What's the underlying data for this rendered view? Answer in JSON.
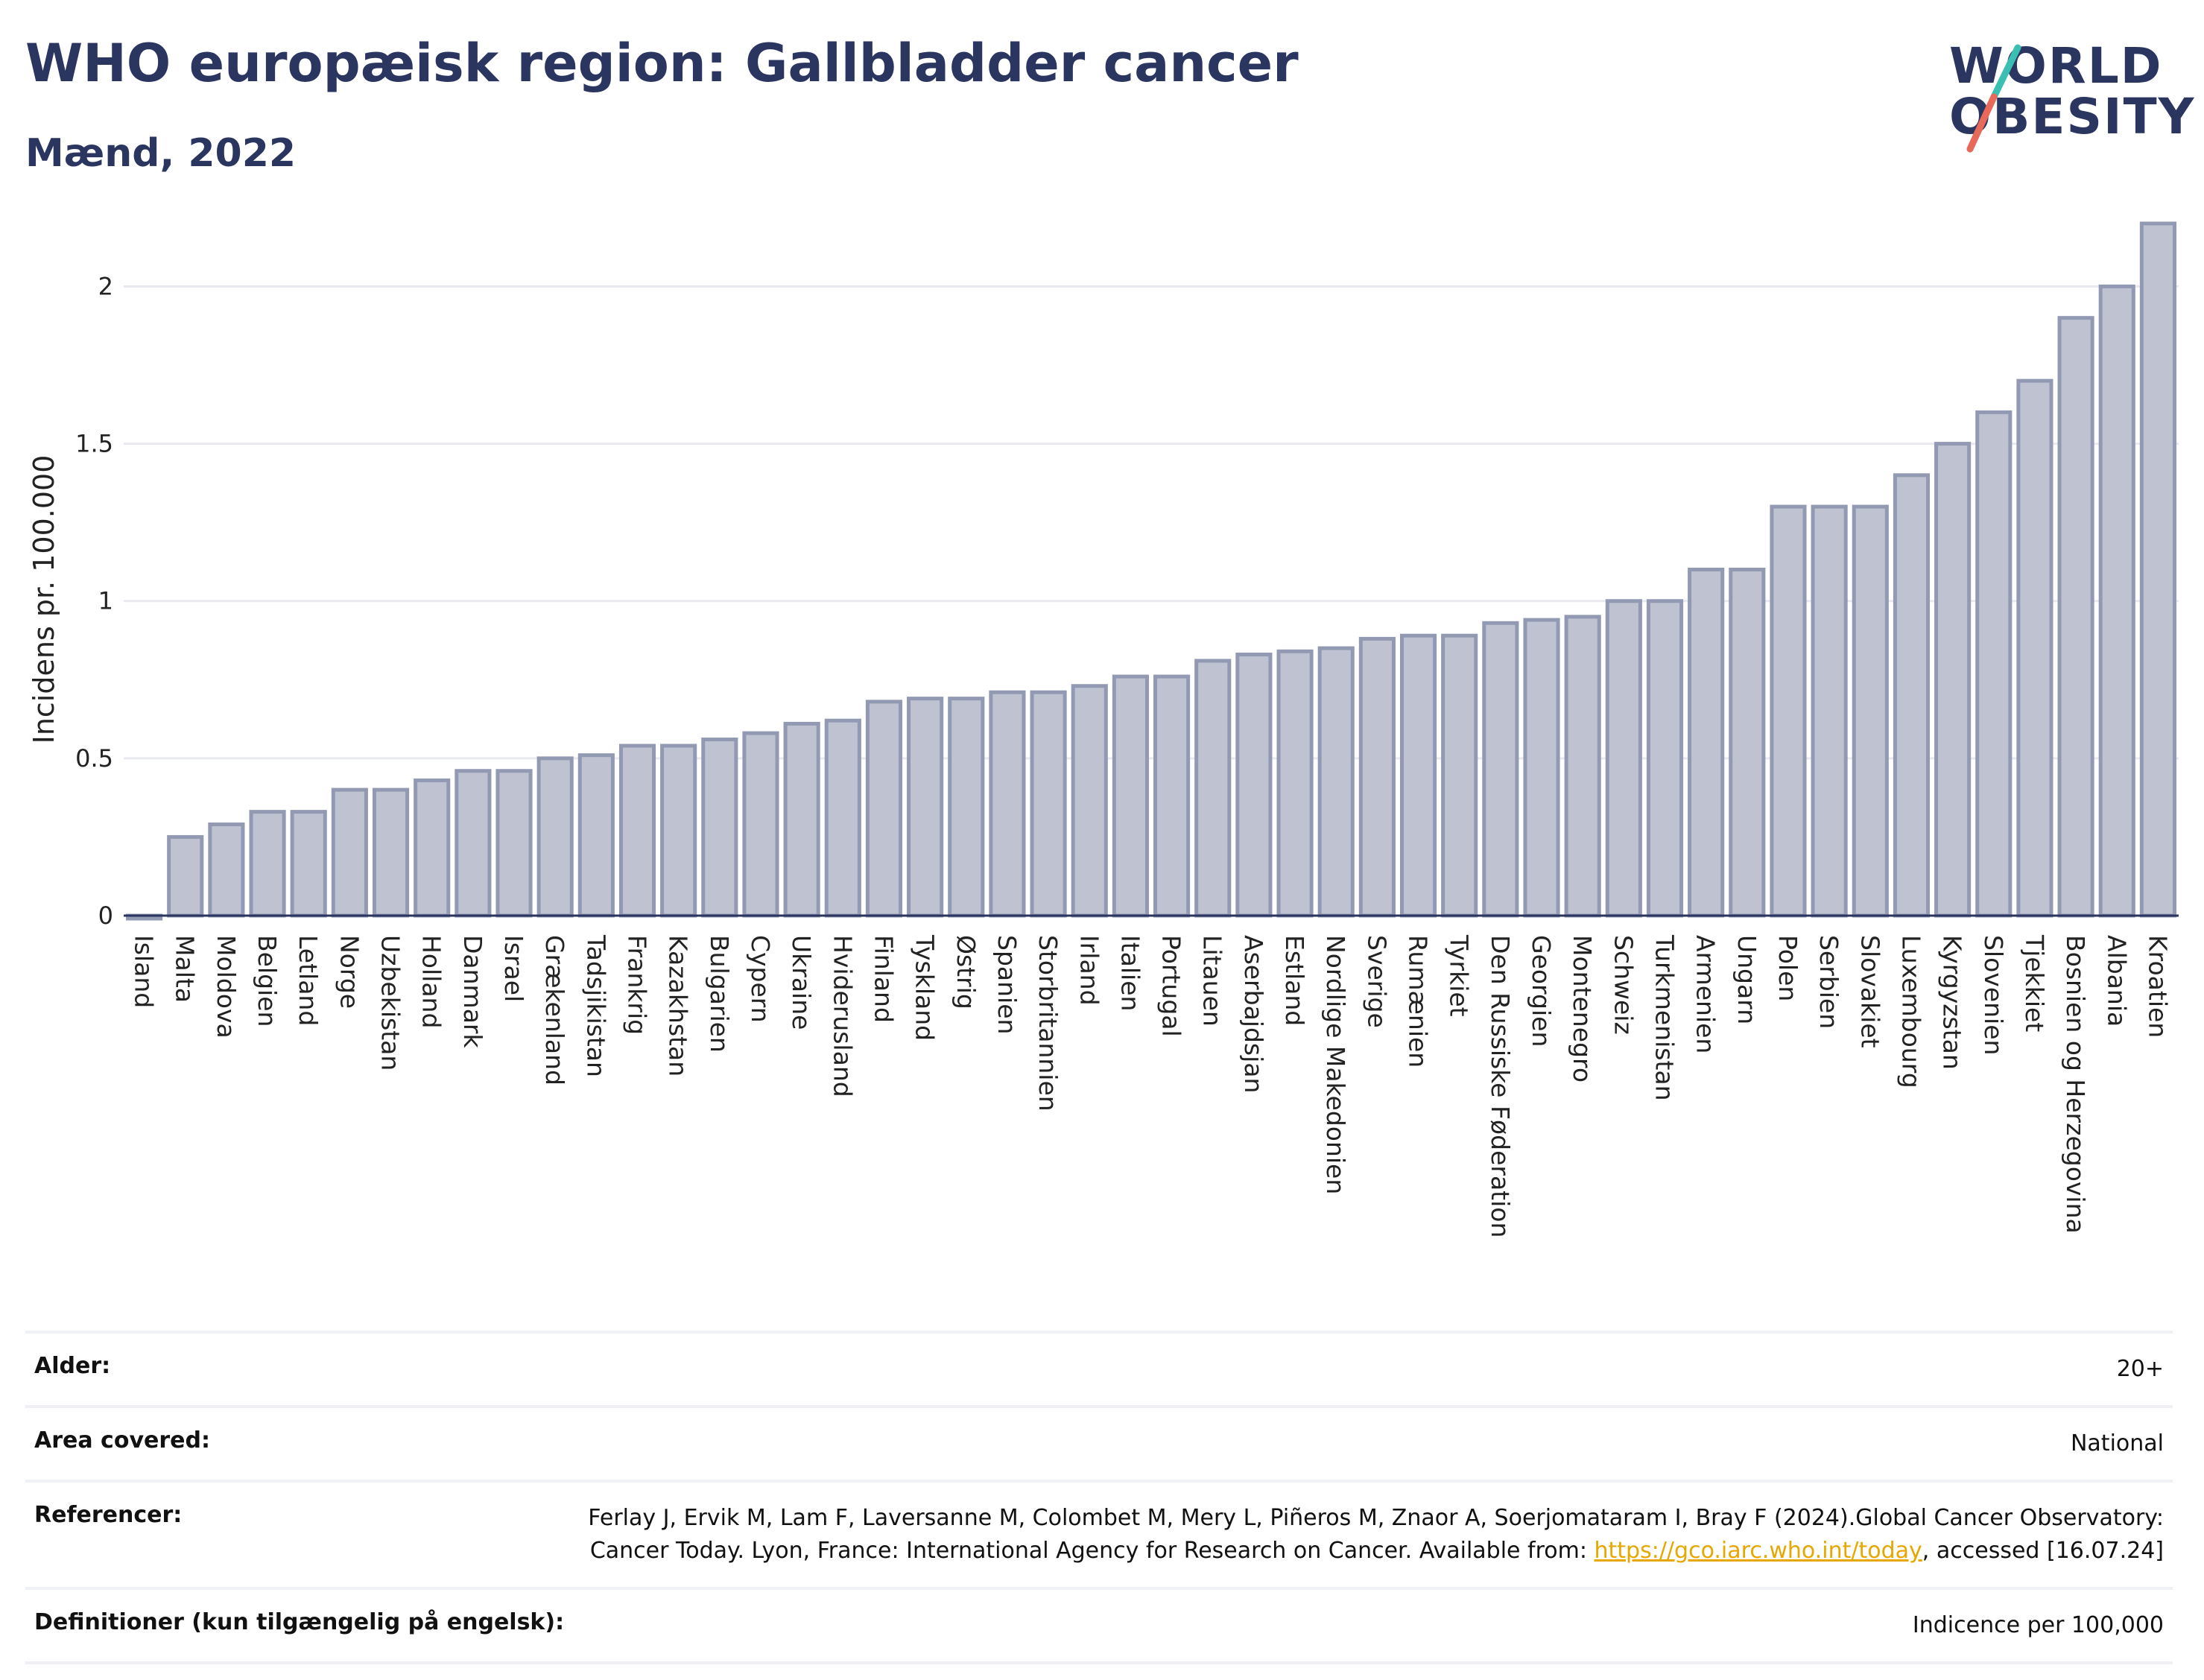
{
  "header": {
    "title": "WHO europæisk region: Gallbladder cancer",
    "subtitle": "Mænd, 2022"
  },
  "logo": {
    "line1": "WORLD",
    "line2": "OBESITY",
    "slash_colors": [
      "#3bbfb2",
      "#e8685a"
    ]
  },
  "chart_data": {
    "type": "bar",
    "title": "WHO europæisk region: Gallbladder cancer",
    "subtitle": "Mænd, 2022",
    "ylabel": "Incidens pr. 100.000",
    "xlabel": "",
    "ylim": [
      0,
      2.2
    ],
    "yticks": [
      "0",
      "0.5",
      "1",
      "1.5",
      "2"
    ],
    "grid": true,
    "bar_color": "#bfc3d1",
    "bar_edge_color": "#9299b2",
    "categories": [
      "Island",
      "Malta",
      "Moldova",
      "Belgien",
      "Letland",
      "Norge",
      "Uzbekistan",
      "Holland",
      "Danmark",
      "Israel",
      "Grækenland",
      "Tadsjikistan",
      "Frankrig",
      "Kazakhstan",
      "Bulgarien",
      "Cypern",
      "Ukraine",
      "Hviderusland",
      "Finland",
      "Tyskland",
      "Østrig",
      "Spanien",
      "Storbritannien",
      "Irland",
      "Italien",
      "Portugal",
      "Litauen",
      "Aserbajdsjan",
      "Estland",
      "Nordlige Makedonien",
      "Sverige",
      "Rumænien",
      "Tyrkiet",
      "Den Russiske Føderation",
      "Georgien",
      "Montenegro",
      "Schweiz",
      "Turkmenistan",
      "Armenien",
      "Ungarn",
      "Polen",
      "Serbien",
      "Slovakiet",
      "Luxembourg",
      "Kyrgyzstan",
      "Slovenien",
      "Tjekkiet",
      "Bosnien og Herzegovina",
      "Albania",
      "Kroatien"
    ],
    "values": [
      0.0,
      0.25,
      0.29,
      0.33,
      0.33,
      0.4,
      0.4,
      0.43,
      0.46,
      0.46,
      0.5,
      0.51,
      0.54,
      0.54,
      0.56,
      0.58,
      0.61,
      0.62,
      0.68,
      0.69,
      0.69,
      0.71,
      0.71,
      0.73,
      0.76,
      0.76,
      0.81,
      0.83,
      0.84,
      0.85,
      0.88,
      0.89,
      0.89,
      0.93,
      0.94,
      0.95,
      1.0,
      1.0,
      1.1,
      1.1,
      1.3,
      1.3,
      1.3,
      1.4,
      1.5,
      1.6,
      1.7,
      1.9,
      2.0,
      2.2
    ]
  },
  "info": {
    "rows": [
      {
        "key": "Alder:",
        "value": "20+"
      },
      {
        "key": "Area covered:",
        "value": "National"
      },
      {
        "key": "Referencer:",
        "value_pre": "Ferlay J, Ervik M, Lam F, Laversanne M, Colombet M, Mery L, Piñeros M, Znaor A, Soerjomataram I, Bray F (2024).Global Cancer Observatory: Cancer Today. Lyon, France: International Agency for Research on Cancer. Available from: ",
        "link": "https://gco.iarc.who.int/today",
        "value_post": ", accessed [16.07.24]"
      },
      {
        "key": "Definitioner (kun tilgængelig på engelsk):",
        "value": "Indicence per 100,000"
      }
    ]
  }
}
